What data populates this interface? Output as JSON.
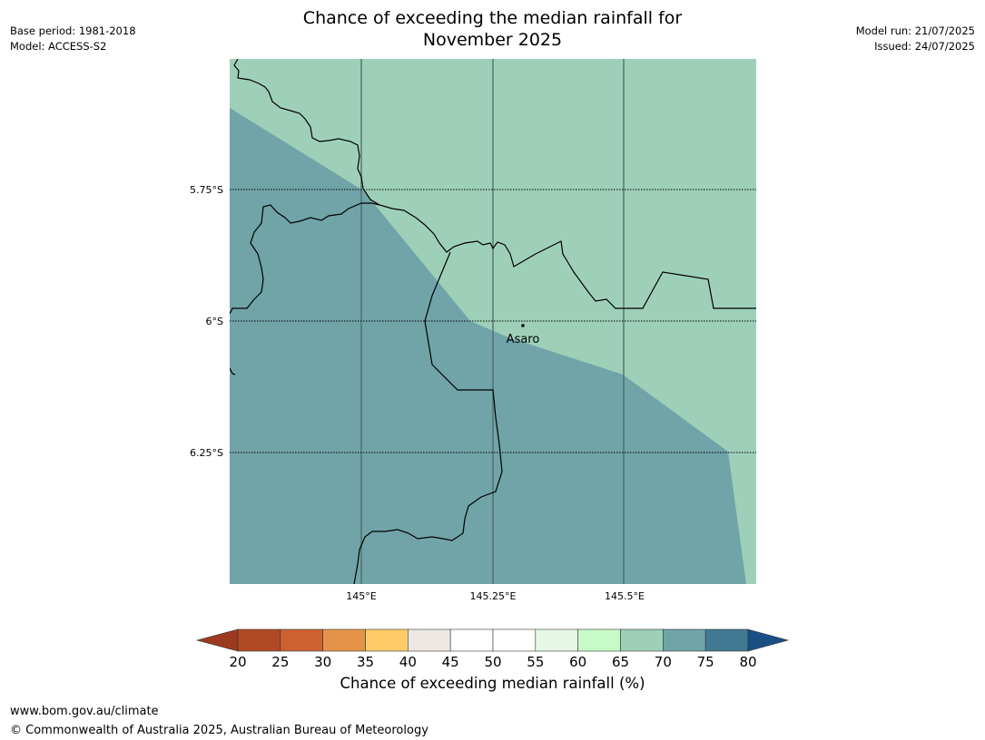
{
  "header": {
    "title_line1": "Chance of exceeding the median rainfall for",
    "title_line2": "November 2025",
    "base_period": "Base period: 1981-2018",
    "model": "Model: ACCESS-S2",
    "model_run": "Model run: 21/07/2025",
    "issued": "Issued: 24/07/2025"
  },
  "map": {
    "lat_labels": [
      "5.75°S",
      "6°S",
      "6.25°S"
    ],
    "lon_labels": [
      "145°E",
      "145.25°E",
      "145.5°E"
    ],
    "place_label": "Asaro",
    "colors": {
      "band_65_70": "#9ed0b9",
      "band_70_75": "#70a4a8",
      "border": "#000000",
      "grid": "#4d6a66"
    }
  },
  "colorbar": {
    "ticks": [
      "20",
      "25",
      "30",
      "35",
      "40",
      "45",
      "50",
      "55",
      "60",
      "65",
      "70",
      "75",
      "80"
    ],
    "below_color": "#9c3a20",
    "above_color": "#1a4f86",
    "colors": [
      "#b04a24",
      "#cd6230",
      "#e49348",
      "#fecb69",
      "#ede8e4",
      "#ffffff",
      "#ffffff",
      "#e6f7e6",
      "#c6fac8",
      "#9ed0b9",
      "#70a4a8",
      "#417993"
    ],
    "label": "Chance of exceeding median rainfall (%)"
  },
  "footer": {
    "url": "www.bom.gov.au/climate",
    "copyright": "© Commonwealth of Australia 2025, Australian Bureau of Meteorology"
  }
}
